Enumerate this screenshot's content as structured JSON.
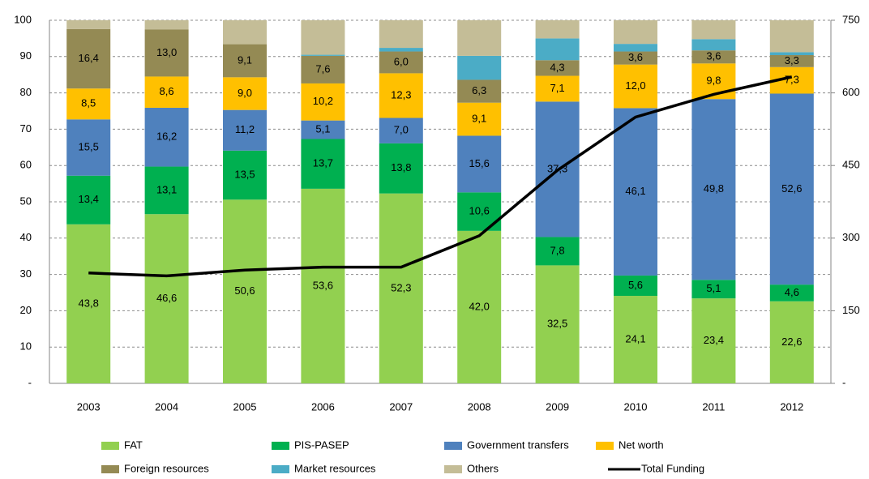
{
  "chart_data": {
    "type": "bar",
    "stacked": true,
    "grid": true,
    "categories": [
      "2003",
      "2004",
      "2005",
      "2006",
      "2007",
      "2008",
      "2009",
      "2010",
      "2011",
      "2012"
    ],
    "ylim": [
      0,
      100
    ],
    "yticks": [
      {
        "value": 0,
        "label": "-"
      },
      10,
      20,
      30,
      40,
      50,
      60,
      70,
      80,
      90,
      100
    ],
    "y2lim": [
      0,
      750
    ],
    "y2ticks": [
      {
        "value": 0,
        "label": "-"
      },
      150,
      300,
      450,
      600,
      750
    ],
    "series": [
      {
        "name": "FAT",
        "color": "#92d050",
        "values": [
          43.8,
          46.6,
          50.6,
          53.6,
          52.3,
          42.0,
          32.5,
          24.1,
          23.4,
          22.6
        ],
        "value_labels": [
          "43,8",
          "46,6",
          "50,6",
          "53,6",
          "52,3",
          "42,0",
          "32,5",
          "24,1",
          "23,4",
          "22,6"
        ]
      },
      {
        "name": "PIS-PASEP",
        "color": "#00b050",
        "values": [
          13.4,
          13.1,
          13.5,
          13.7,
          13.8,
          10.6,
          7.8,
          5.6,
          5.1,
          4.6
        ],
        "value_labels": [
          "13,4",
          "13,1",
          "13,5",
          "13,7",
          "13,8",
          "10,6",
          "7,8",
          "5,6",
          "5,1",
          "4,6"
        ]
      },
      {
        "name": "Government transfers",
        "color": "#4f81bd",
        "values": [
          15.5,
          16.2,
          11.2,
          5.1,
          7.0,
          15.6,
          37.3,
          46.1,
          49.8,
          52.6
        ],
        "value_labels": [
          "15,5",
          "16,2",
          "11,2",
          "5,1",
          "7,0",
          "15,6",
          "37,3",
          "46,1",
          "49,8",
          "52,6"
        ]
      },
      {
        "name": "Net worth",
        "color": "#ffc000",
        "values": [
          8.5,
          8.6,
          9.0,
          10.2,
          12.3,
          9.1,
          7.1,
          12.0,
          9.8,
          7.3
        ],
        "value_labels": [
          "8,5",
          "8,6",
          "9,0",
          "10,2",
          "12,3",
          "9,1",
          "7,1",
          "12,0",
          "9,8",
          "7,3"
        ]
      },
      {
        "name": "Foreign resources",
        "color": "#948a54",
        "values": [
          16.4,
          13.0,
          9.1,
          7.6,
          6.0,
          6.3,
          4.3,
          3.6,
          3.6,
          3.3
        ],
        "value_labels": [
          "16,4",
          "13,0",
          "9,1",
          "7,6",
          "6,0",
          "6,3",
          "4,3",
          "3,6",
          "3,6",
          "3,3"
        ]
      },
      {
        "name": "Market resources",
        "color": "#4bacc6",
        "values": [
          0,
          0,
          0,
          0.3,
          1.0,
          6.6,
          6.0,
          2.1,
          3.1,
          0.8
        ]
      },
      {
        "name": "Others",
        "color": "#c4bd97",
        "values": [
          2.4,
          2.5,
          6.6,
          9.5,
          7.6,
          9.8,
          5.0,
          6.5,
          5.2,
          8.8
        ]
      },
      {
        "name": "Total Funding",
        "type": "line",
        "axis": "y2",
        "color": "#000000",
        "values": [
          228,
          222,
          234,
          240,
          240,
          305,
          440,
          550,
          597,
          633
        ]
      }
    ]
  }
}
